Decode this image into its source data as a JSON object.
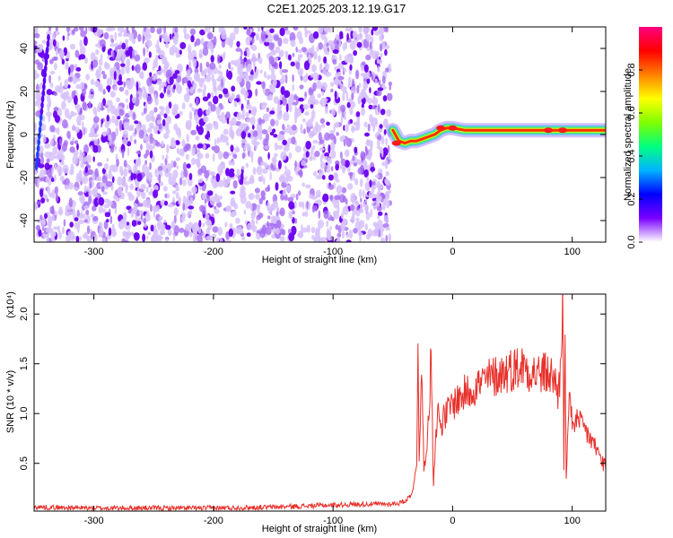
{
  "title": "C2E1.2025.203.12.19.G17",
  "chart_data": [
    {
      "type": "heatmap",
      "xlabel": "Height of straight line (km)",
      "ylabel": "Frequency (Hz)",
      "xlim": [
        -350,
        128
      ],
      "ylim": [
        -50,
        50
      ],
      "xticks": [
        -300,
        -200,
        -100,
        0,
        100
      ],
      "yticks": [
        -40,
        -20,
        0,
        20,
        40
      ],
      "noise_region_x": [
        -350,
        -52
      ],
      "signal_trace": {
        "x": [
          -50,
          -45,
          -40,
          -35,
          -30,
          -25,
          -20,
          -15,
          -10,
          -5,
          0,
          10,
          20,
          40,
          60,
          80,
          90,
          100,
          110,
          128
        ],
        "y": [
          2,
          -3,
          -4,
          -3,
          -3,
          -2,
          -1,
          0,
          2,
          3,
          3,
          2,
          2,
          2,
          2,
          2,
          2,
          2,
          2,
          2
        ]
      },
      "colorbar": {
        "label": "Normalized spectral amplitude",
        "range": [
          0,
          1
        ],
        "ticks": [
          0.0,
          0.2,
          0.4,
          0.6,
          0.8
        ],
        "colors": [
          "#ffffff",
          "#7a00ff",
          "#0000ff",
          "#00b4ff",
          "#00ff80",
          "#80ff00",
          "#ffff00",
          "#ff8000",
          "#ff0000",
          "#ff0080"
        ]
      }
    },
    {
      "type": "line",
      "xlabel": "Height of straight line (km)",
      "ylabel": "SNR (10 * v/v)",
      "multiplier": "(x10⁴)",
      "xlim": [
        -350,
        128
      ],
      "ylim": [
        0.02,
        2.2
      ],
      "xticks": [
        -300,
        -200,
        -100,
        0,
        100
      ],
      "yticks": [
        0.5,
        1.0,
        1.5,
        2.0
      ],
      "ytick_labels": [
        "0.5",
        "1.0",
        "1.5",
        "2.0"
      ],
      "series": [
        {
          "color": "#e8302a",
          "x": [
            -350,
            -300,
            -250,
            -200,
            -150,
            -100,
            -75,
            -55,
            -45,
            -40,
            -35,
            -32,
            -30,
            -29,
            -28,
            -26,
            -24,
            -20,
            -18,
            -16,
            -14,
            -12,
            -10,
            -5,
            0,
            10,
            20,
            30,
            40,
            50,
            60,
            70,
            80,
            85,
            88,
            90,
            92,
            93,
            94,
            95,
            97,
            100,
            110,
            120,
            128
          ],
          "y": [
            0.06,
            0.05,
            0.05,
            0.05,
            0.06,
            0.08,
            0.09,
            0.09,
            0.1,
            0.12,
            0.18,
            0.3,
            0.55,
            1.7,
            0.6,
            1.4,
            0.45,
            0.9,
            1.62,
            0.3,
            0.85,
            1.0,
            0.9,
            1.0,
            1.1,
            1.2,
            1.28,
            1.35,
            1.4,
            1.45,
            1.48,
            1.4,
            1.4,
            1.35,
            1.2,
            1.4,
            2.2,
            0.4,
            1.9,
            0.3,
            1.1,
            0.95,
            0.85,
            0.65,
            0.45
          ]
        }
      ]
    }
  ]
}
